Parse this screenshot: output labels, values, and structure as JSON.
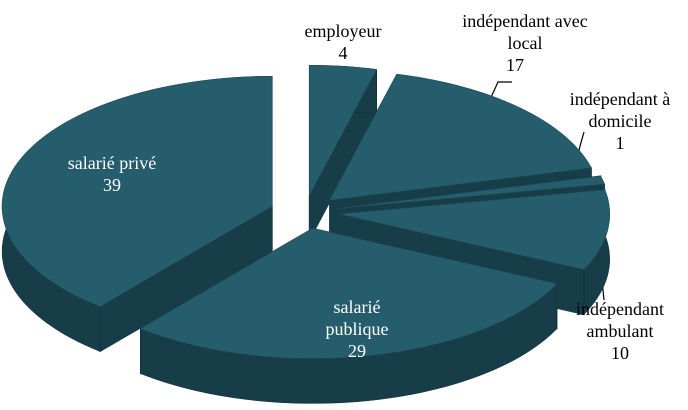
{
  "chart_data": {
    "type": "pie",
    "pie_style": "3d-exploded",
    "color": "#265d6c",
    "side_color": "#173d48",
    "categories": [
      "employeur",
      "indépendant avec local",
      "indépendant à domicile",
      "indépendant ambulant",
      "salarié publique",
      "salarié privé"
    ],
    "values": [
      4,
      17,
      1,
      10,
      29,
      39
    ]
  }
}
